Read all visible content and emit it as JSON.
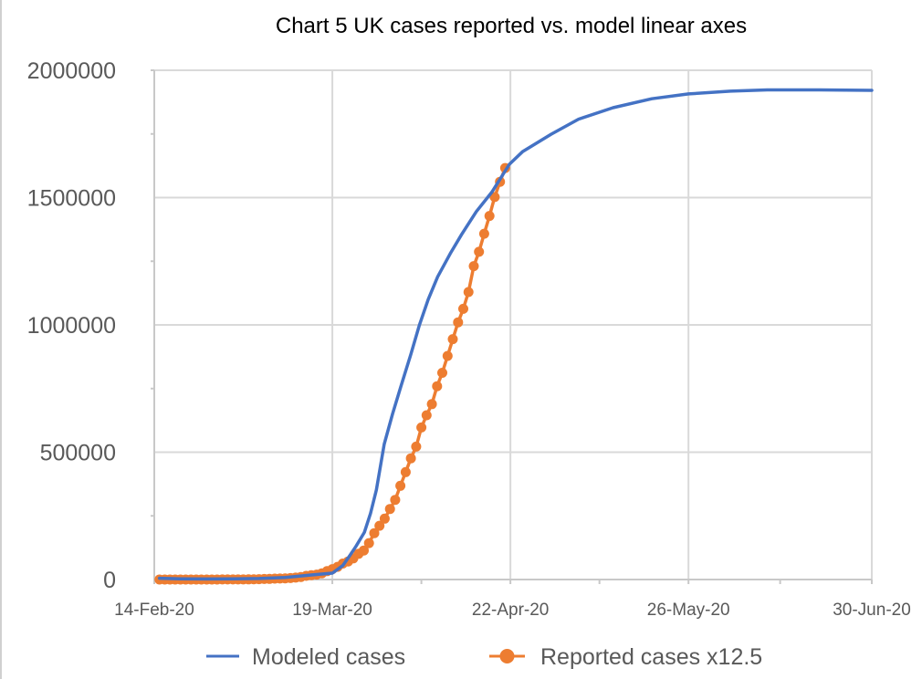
{
  "chart_data": {
    "type": "line",
    "title": "Chart 5 UK cases reported vs. model linear axes",
    "xlabel": "",
    "ylabel": "",
    "x_unit": "days since 14-Feb-20",
    "xlim": [
      0,
      137
    ],
    "ylim": [
      0,
      2000000
    ],
    "grid": true,
    "legend_position": "bottom",
    "x_ticks": [
      {
        "day": 0,
        "label": "14-Feb-20"
      },
      {
        "day": 34,
        "label": "19-Mar-20"
      },
      {
        "day": 68,
        "label": "22-Apr-20"
      },
      {
        "day": 102,
        "label": "26-May-20"
      },
      {
        "day": 137,
        "label": "30-Jun-20"
      }
    ],
    "y_ticks": [
      {
        "value": 0,
        "label": "0"
      },
      {
        "value": 500000,
        "label": "500000"
      },
      {
        "value": 1000000,
        "label": "1000000"
      },
      {
        "value": 1500000,
        "label": "1500000"
      },
      {
        "value": 2000000,
        "label": "2000000"
      }
    ],
    "series": [
      {
        "name": "Modeled cases",
        "color": "#4472C4",
        "marker": "none",
        "x": [
          1,
          5,
          10,
          15,
          20,
          25,
          30,
          34,
          36,
          37.2,
          38.5,
          40.1,
          41.3,
          42.4,
          43.9,
          45.5,
          47.1,
          49,
          50.6,
          52.3,
          54.1,
          56.5,
          58.7,
          61.5,
          64.5,
          67.8,
          70.3,
          75.8,
          81,
          87.6,
          95,
          102,
          110,
          117,
          127,
          137
        ],
        "values": [
          5000,
          3000,
          2000,
          2500,
          4000,
          8000,
          18000,
          25000,
          55000,
          90000,
          130000,
          185000,
          260000,
          352000,
          532000,
          650000,
          759000,
          885000,
          998000,
          1100000,
          1189000,
          1280000,
          1356000,
          1445000,
          1523000,
          1631000,
          1680000,
          1749000,
          1808000,
          1853000,
          1888000,
          1907000,
          1918000,
          1923000,
          1923000,
          1921000
        ]
      },
      {
        "name": "Reported cases x12.5",
        "color": "#ED7D31",
        "marker": "circle",
        "x": [
          1,
          2,
          3,
          4,
          5,
          6,
          7,
          8,
          9,
          10,
          11,
          12,
          13,
          14,
          15,
          16,
          17,
          18,
          19,
          20,
          21,
          22,
          23,
          24,
          25,
          26,
          27,
          28,
          29,
          30,
          31,
          32,
          33,
          34,
          35,
          36,
          37,
          38,
          39,
          40,
          41,
          42,
          43,
          44,
          45,
          46,
          47,
          48,
          49,
          50,
          51,
          52,
          53,
          54,
          55,
          56,
          57,
          58,
          59,
          60,
          61,
          62,
          63,
          64,
          65,
          66,
          67
        ],
        "values": [
          112,
          112,
          112,
          112,
          112,
          112,
          112,
          112,
          112,
          162,
          162,
          162,
          187,
          250,
          287,
          450,
          500,
          637,
          1087,
          1450,
          2050,
          2612,
          3475,
          4012,
          4787,
          5750,
          7375,
          9975,
          14250,
          17150,
          19287,
          24375,
          32825,
          40862,
          49787,
          62725,
          71037,
          83125,
          100962,
          114000,
          143000,
          182000,
          211000,
          239000,
          277000,
          313000,
          368000,
          422000,
          476000,
          522000,
          597000,
          645000,
          689000,
          759000,
          812000,
          878000,
          944000,
          1010000,
          1063000,
          1129000,
          1231000,
          1287000,
          1358000,
          1428000,
          1502000,
          1562000,
          1616000
        ]
      }
    ]
  }
}
